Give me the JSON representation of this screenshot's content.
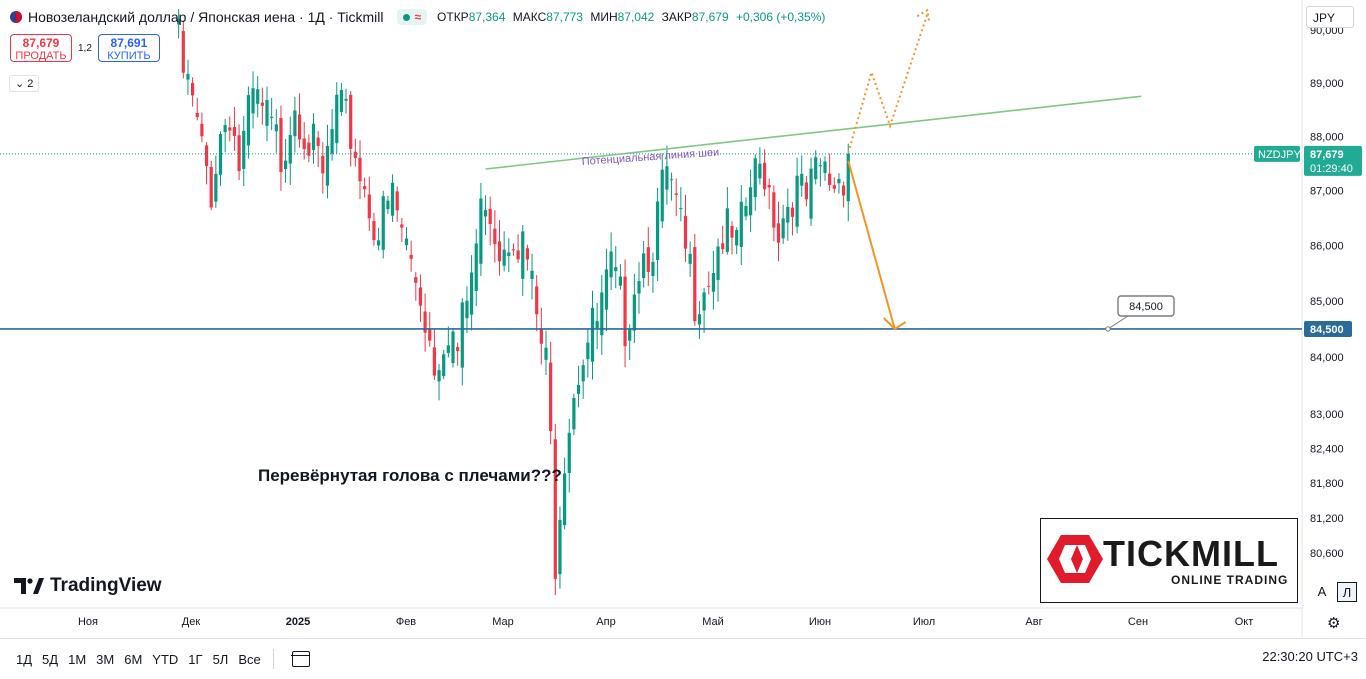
{
  "header": {
    "title": "Новозеландский доллар / Японская иена · 1Д · Tickmill",
    "status_symbol": "≈",
    "ohlc": [
      {
        "label": "ОТКР",
        "value": "87,364"
      },
      {
        "label": "МАКС",
        "value": "87,773"
      },
      {
        "label": "МИН",
        "value": "87,042"
      },
      {
        "label": "ЗАКР",
        "value": "87,679"
      }
    ],
    "change": "+0,306 (+0,35%)",
    "currency": "JPY"
  },
  "trade": {
    "sell_price": "87,679",
    "sell_label": "ПРОДАТЬ",
    "spread": "1,2",
    "buy_price": "87,691",
    "buy_label": "КУПИТЬ",
    "indicators_count": "2"
  },
  "chart_data": {
    "type": "candlestick",
    "x_ticks": [
      "Ноя",
      "Дек",
      "2025",
      "Фев",
      "Мар",
      "Апр",
      "Май",
      "Июн",
      "Июл",
      "Авг",
      "Сен",
      "Окт"
    ],
    "y_ticks": [
      "90,000",
      "89,000",
      "88,000",
      "87,000",
      "86,000",
      "85,000",
      "84,000",
      "83,000",
      "82,400",
      "81,800",
      "81,200",
      "80,600"
    ],
    "y_scale": "log",
    "ylim": [
      80.1,
      90.1
    ],
    "symbol": "NZDJPY",
    "last_price": "87,679",
    "countdown": "01:29:40",
    "level_label": "84,500",
    "level_value": 84.5,
    "neckline_label": "Потенциальная линия шеи",
    "annotation": "Перевёрнутая голова с плечами???",
    "colors": {
      "up": "#089981",
      "down": "#f23645",
      "neckline": "#81c784",
      "level": "#2a6b9a",
      "projection": "#f59425",
      "neckline_text": "#7e57c2"
    },
    "path_points": [
      {
        "t": 0,
        "p": 90.4
      },
      {
        "t": 2,
        "p": 89.3
      },
      {
        "t": 4,
        "p": 88.7
      },
      {
        "t": 6,
        "p": 87.8
      },
      {
        "t": 8,
        "p": 87.2
      },
      {
        "t": 10,
        "p": 88.2
      },
      {
        "t": 12,
        "p": 88.7
      },
      {
        "t": 14,
        "p": 87.6
      },
      {
        "t": 17,
        "p": 88.8
      },
      {
        "t": 20,
        "p": 88.4
      },
      {
        "t": 23,
        "p": 87.8
      },
      {
        "t": 26,
        "p": 88.9
      },
      {
        "t": 29,
        "p": 88.1
      },
      {
        "t": 32,
        "p": 87.3
      },
      {
        "t": 35,
        "p": 88.6
      },
      {
        "t": 38,
        "p": 88.2
      },
      {
        "t": 41,
        "p": 87.2
      },
      {
        "t": 44,
        "p": 86.4
      },
      {
        "t": 47,
        "p": 87.0
      },
      {
        "t": 50,
        "p": 86.1
      },
      {
        "t": 53,
        "p": 85.3
      },
      {
        "t": 56,
        "p": 84.1
      },
      {
        "t": 59,
        "p": 84.8
      },
      {
        "t": 61,
        "p": 84.2
      },
      {
        "t": 64,
        "p": 85.6
      },
      {
        "t": 67,
        "p": 87.2
      },
      {
        "t": 70,
        "p": 86.2
      },
      {
        "t": 73,
        "p": 86.6
      },
      {
        "t": 76,
        "p": 85.8
      },
      {
        "t": 78,
        "p": 84.8
      },
      {
        "t": 80,
        "p": 83.9
      },
      {
        "t": 81,
        "p": 82.6
      },
      {
        "t": 82,
        "p": 80.8
      },
      {
        "t": 84,
        "p": 82.6
      },
      {
        "t": 86,
        "p": 83.7
      },
      {
        "t": 88,
        "p": 84.3
      },
      {
        "t": 91,
        "p": 84.7
      },
      {
        "t": 94,
        "p": 85.6
      },
      {
        "t": 97,
        "p": 84.8
      },
      {
        "t": 100,
        "p": 85.9
      },
      {
        "t": 103,
        "p": 86.3
      },
      {
        "t": 106,
        "p": 87.4
      },
      {
        "t": 109,
        "p": 86.3
      },
      {
        "t": 112,
        "p": 85.3
      },
      {
        "t": 115,
        "p": 85.7
      },
      {
        "t": 118,
        "p": 86.4
      },
      {
        "t": 121,
        "p": 86.0
      },
      {
        "t": 124,
        "p": 87.2
      },
      {
        "t": 127,
        "p": 87.6
      },
      {
        "t": 130,
        "p": 86.5
      },
      {
        "t": 133,
        "p": 87.2
      },
      {
        "t": 136,
        "p": 86.9
      },
      {
        "t": 139,
        "p": 87.5
      },
      {
        "t": 142,
        "p": 87.3
      },
      {
        "t": 145,
        "p": 87.68
      }
    ],
    "neckline": {
      "from": {
        "t": 67,
        "p": 87.4
      },
      "to": {
        "t": 208,
        "p": 88.75
      }
    },
    "projection_down": [
      {
        "t": 145,
        "p": 87.55
      },
      {
        "t": 155,
        "p": 84.5
      }
    ],
    "projection_up": [
      {
        "t": 145,
        "p": 87.7
      },
      {
        "t": 150,
        "p": 89.2
      },
      {
        "t": 154,
        "p": 88.2
      },
      {
        "t": 162,
        "p": 90.3
      }
    ]
  },
  "watermark": "TradingView",
  "brand": {
    "name": "TICKMILL",
    "tagline": "ONLINE TRADING"
  },
  "scale_buttons": {
    "auto": "A",
    "log": "Л"
  },
  "ranges": [
    "1Д",
    "5Д",
    "1М",
    "3М",
    "6М",
    "YTD",
    "1Г",
    "5Л",
    "Все"
  ],
  "clock": "22:30:20 UTC+3"
}
